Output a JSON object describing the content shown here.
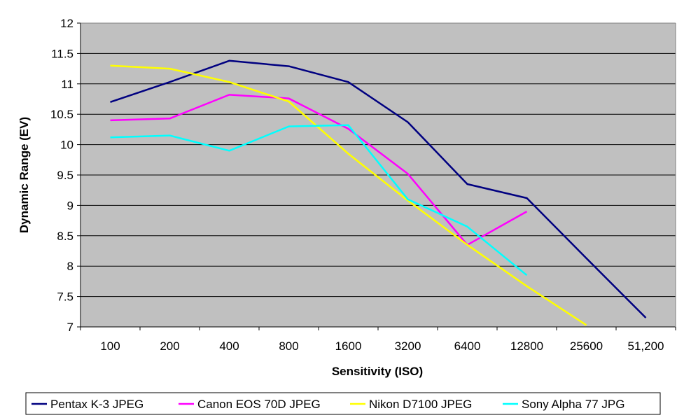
{
  "chart_data": {
    "type": "line",
    "xlabel": "Sensitivity (ISO)",
    "ylabel": "Dynamic Range (EV)",
    "categories": [
      "100",
      "200",
      "400",
      "800",
      "1600",
      "3200",
      "6400",
      "12800",
      "25600",
      "51,200"
    ],
    "ylim": [
      7,
      12
    ],
    "yticks": [
      "7",
      "7.5",
      "8",
      "8.5",
      "9",
      "9.5",
      "10",
      "10.5",
      "11",
      "11.5",
      "12"
    ],
    "grid": "horizontal",
    "legend_position": "bottom",
    "background_color": "#c0c0c0",
    "series": [
      {
        "name": "Pentax K-3 JPEG",
        "color": "#000080",
        "values": [
          10.7,
          11.03,
          11.38,
          11.29,
          11.03,
          10.37,
          9.35,
          9.12,
          8.13,
          7.15
        ]
      },
      {
        "name": "Canon EOS 70D JPEG",
        "color": "#ff00ff",
        "values": [
          10.4,
          10.43,
          10.82,
          10.76,
          10.26,
          9.52,
          8.35,
          8.9,
          null,
          null
        ]
      },
      {
        "name": "Nikon D7100 JPEG",
        "color": "#ffff00",
        "values": [
          11.3,
          11.25,
          11.03,
          10.71,
          9.85,
          9.08,
          8.35,
          7.67,
          7.03,
          null
        ]
      },
      {
        "name": "Sony Alpha 77 JPG",
        "color": "#00ffff",
        "values": [
          10.12,
          10.15,
          9.9,
          10.3,
          10.32,
          9.1,
          8.65,
          7.85,
          null,
          null
        ]
      }
    ]
  }
}
